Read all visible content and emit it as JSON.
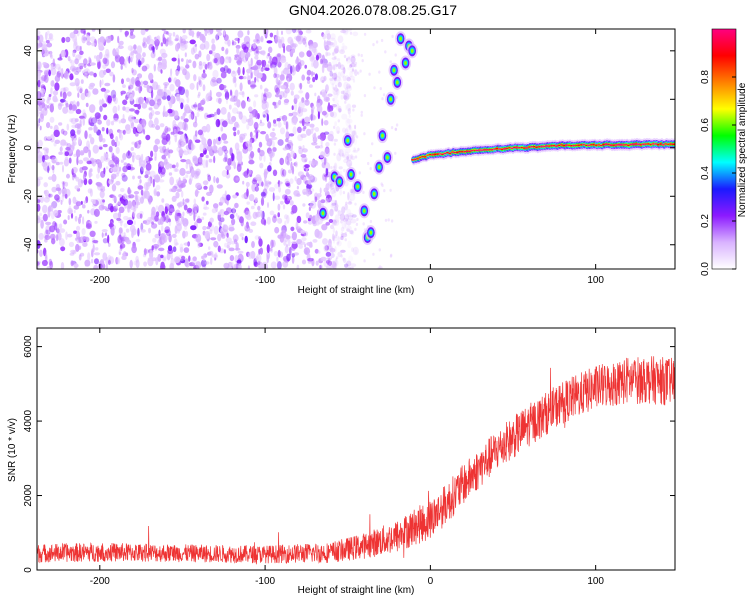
{
  "title": "GN04.2026.078.08.25.G17",
  "chart_data": [
    {
      "type": "heatmap",
      "name": "spectrogram",
      "xlabel": "Height of straight line (km)",
      "ylabel": "Frequency (Hz)",
      "xlim": [
        -238,
        148
      ],
      "ylim": [
        -50,
        49
      ],
      "xticks": [
        -200,
        -100,
        0,
        100
      ],
      "yticks": [
        -40,
        -20,
        0,
        20,
        40
      ],
      "colorbar": {
        "label": "Normalized spectral amplitude",
        "range": [
          0,
          1
        ],
        "ticks": [
          0.0,
          0.2,
          0.4,
          0.6,
          0.8
        ],
        "tick_labels": [
          "0.0",
          "0.2",
          "0.4",
          "0.6",
          "0.8"
        ],
        "colormap": [
          "#ffffff",
          "#d9b3ff",
          "#8c1aff",
          "#1a1aff",
          "#00ffff",
          "#00ff00",
          "#ffff00",
          "#ff8000",
          "#ff0000",
          "#ff0080"
        ]
      },
      "noise_region_x": [
        -238,
        -60
      ],
      "features": {
        "steep_track": [
          {
            "x": -65,
            "y": -27
          },
          {
            "x": -58,
            "y": -12
          },
          {
            "x": -55,
            "y": -14
          },
          {
            "x": -50,
            "y": 3
          },
          {
            "x": -48,
            "y": -11
          },
          {
            "x": -44,
            "y": -16
          },
          {
            "x": -40,
            "y": -26
          },
          {
            "x": -38,
            "y": -37
          },
          {
            "x": -36,
            "y": -35
          },
          {
            "x": -34,
            "y": -19
          },
          {
            "x": -31,
            "y": -8
          },
          {
            "x": -29,
            "y": 5
          },
          {
            "x": -26,
            "y": -4
          },
          {
            "x": -24,
            "y": 20
          },
          {
            "x": -22,
            "y": 32
          },
          {
            "x": -20,
            "y": 27
          },
          {
            "x": -18,
            "y": 45
          },
          {
            "x": -15,
            "y": 35
          },
          {
            "x": -13,
            "y": 42
          },
          {
            "x": -11,
            "y": 40
          }
        ],
        "ridge": {
          "x": [
            -10,
            0,
            20,
            40,
            60,
            80,
            100,
            120,
            148
          ],
          "y": [
            -5,
            -3,
            -1.5,
            -0.5,
            0.2,
            1,
            1.2,
            1.3,
            1.5
          ],
          "amplitude": [
            0.75,
            0.8,
            0.9,
            0.85,
            0.95,
            0.9,
            0.95,
            1.0,
            0.9
          ]
        }
      }
    },
    {
      "type": "line",
      "name": "snr",
      "xlabel": "Height of straight line (km)",
      "ylabel": "SNR (10 * v/v)",
      "xlim": [
        -238,
        148
      ],
      "ylim": [
        0,
        6500
      ],
      "xticks": [
        -200,
        -100,
        0,
        100
      ],
      "yticks": [
        0,
        2000,
        4000,
        6000
      ],
      "color": "#ee3333",
      "series": [
        {
          "name": "SNR",
          "x": [
            -238,
            -200,
            -150,
            -100,
            -60,
            -40,
            -20,
            -10,
            0,
            10,
            20,
            40,
            60,
            80,
            100,
            120,
            135,
            148
          ],
          "y": [
            450,
            480,
            450,
            420,
            470,
            650,
            900,
            1150,
            1350,
            1800,
            2300,
            3200,
            3900,
            4500,
            4900,
            5100,
            5100,
            5050
          ],
          "noise": [
            250,
            260,
            240,
            240,
            280,
            350,
            450,
            500,
            550,
            550,
            550,
            560,
            580,
            580,
            600,
            650,
            650,
            650
          ]
        }
      ]
    }
  ]
}
